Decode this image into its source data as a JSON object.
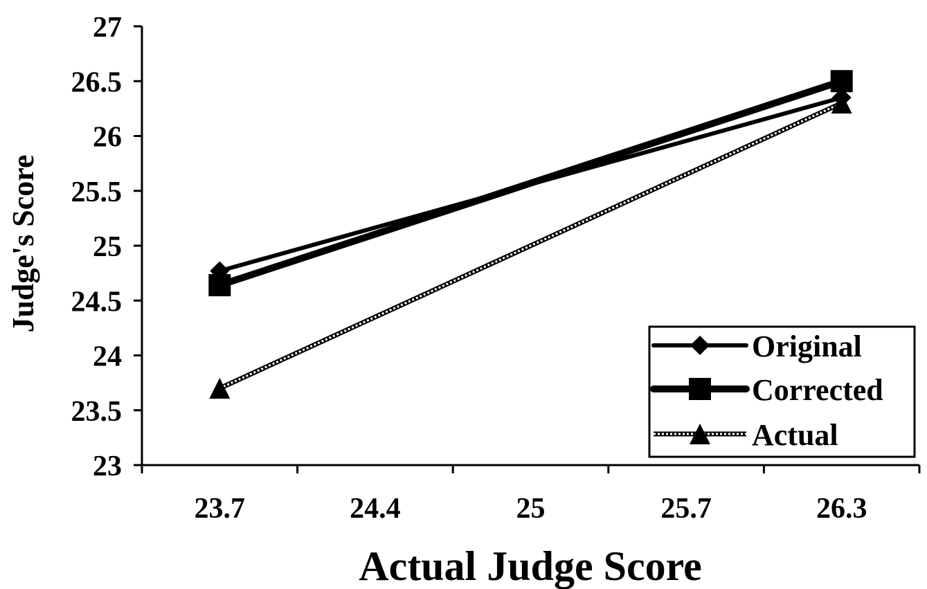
{
  "chart_data": {
    "type": "line",
    "xlabel": "Actual Judge Score",
    "ylabel": "Judge's Score",
    "categories": [
      "23.7",
      "24.4",
      "25",
      "25.7",
      "26.3"
    ],
    "y_ticks": [
      "23",
      "23.5",
      "24",
      "24.5",
      "25",
      "25.5",
      "26",
      "26.5",
      "27"
    ],
    "ylim": [
      23,
      27
    ],
    "grid": false,
    "legend_position": "bottom-right",
    "series": [
      {
        "name": "Original",
        "marker": "diamond",
        "line_style": "solid",
        "points": [
          {
            "x": "23.7",
            "y": 24.77
          },
          {
            "x": "26.3",
            "y": 26.35
          }
        ]
      },
      {
        "name": "Corrected",
        "marker": "square",
        "line_style": "thick",
        "points": [
          {
            "x": "23.7",
            "y": 24.64
          },
          {
            "x": "26.3",
            "y": 26.5
          }
        ]
      },
      {
        "name": "Actual",
        "marker": "triangle",
        "line_style": "dotted",
        "points": [
          {
            "x": "23.7",
            "y": 23.7
          },
          {
            "x": "26.3",
            "y": 26.3
          }
        ]
      }
    ],
    "colors": {
      "line": "#000000",
      "background": "#ffffff"
    }
  }
}
